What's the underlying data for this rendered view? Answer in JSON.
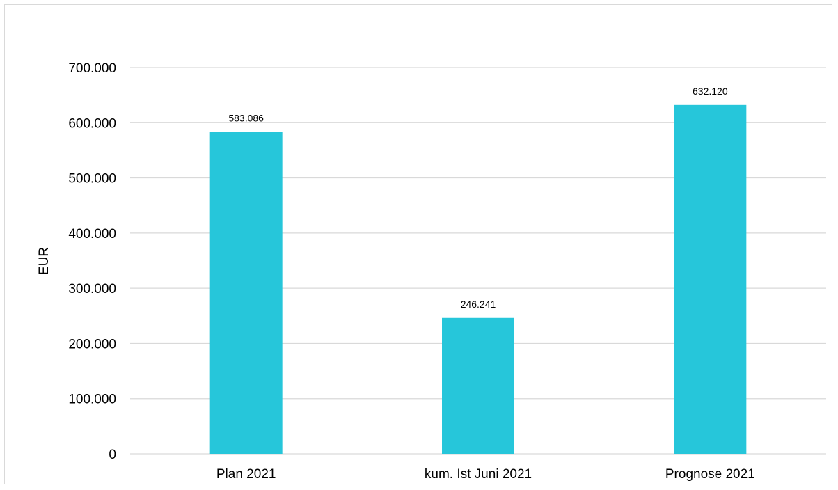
{
  "chart_data": {
    "type": "bar",
    "title": "",
    "xlabel": "",
    "ylabel": "EUR",
    "categories": [
      "Plan 2021",
      "kum. Ist Juni 2021",
      "Prognose 2021"
    ],
    "values": [
      583086,
      246241,
      632120
    ],
    "data_labels": [
      "583.086",
      "246.241",
      "632.120"
    ],
    "ylim": [
      0,
      700000
    ],
    "yticks": [
      0,
      100000,
      200000,
      300000,
      400000,
      500000,
      600000,
      700000
    ],
    "ytick_labels": [
      "0",
      "100.000",
      "200.000",
      "300.000",
      "400.000",
      "500.000",
      "600.000",
      "700.000"
    ],
    "grid": true,
    "legend": "none",
    "bar_color": "#26c6da",
    "grid_color": "#d9d9d9"
  }
}
